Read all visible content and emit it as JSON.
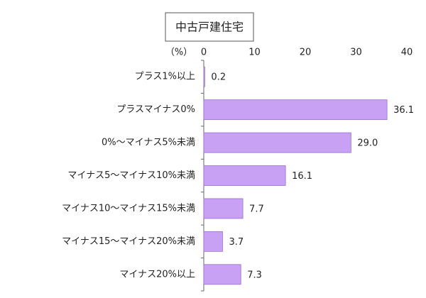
{
  "chart_data": {
    "type": "bar",
    "orientation": "horizontal",
    "title": "中古戸建住宅",
    "x_label": "（%）",
    "categories": [
      "プラス1%以上",
      "プラスマイナス0%",
      "0%～マイナス5%未満",
      "マイナス5～マイナス10%未満",
      "マイナス10～マイナス15%未満",
      "マイナス15～マイナス20%未満",
      "マイナス20%以上"
    ],
    "values": [
      0.2,
      36.1,
      29.0,
      16.1,
      7.7,
      3.7,
      7.3
    ],
    "value_labels": [
      "0.2",
      "36.1",
      "29.0",
      "16.1",
      "7.7",
      "3.7",
      "7.3"
    ],
    "color": "#c8a0f4",
    "xlim": [
      0,
      40
    ],
    "xticks": [
      0,
      10,
      20,
      30,
      40
    ]
  }
}
